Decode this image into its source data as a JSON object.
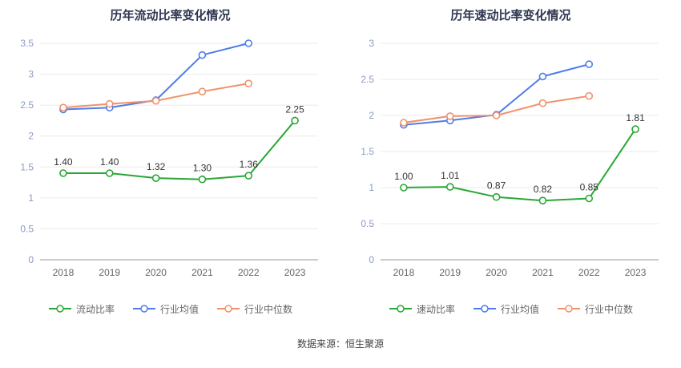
{
  "footer": {
    "source": "数据来源：恒生聚源"
  },
  "colors": {
    "main_series_green": "#2aa637",
    "industry_mean_blue": "#4e7de9",
    "industry_median_orange": "#f1916c",
    "title_color": "#2e3750",
    "y_tick_color": "#8a9cc4",
    "x_tick_color": "#666666",
    "label_color": "#333333",
    "grid_color": "#ebebeb",
    "axis_color": "#999999"
  },
  "chart_data": [
    {
      "type": "line",
      "title": "历年流动比率变化情况",
      "categories": [
        "2018",
        "2019",
        "2020",
        "2021",
        "2022",
        "2023"
      ],
      "ylim": [
        0,
        3.5
      ],
      "yticks": [
        0,
        0.5,
        1,
        1.5,
        2,
        2.5,
        3,
        3.5
      ],
      "grid": true,
      "legend_position": "bottom",
      "series": [
        {
          "name": "流动比率",
          "color": "#2aa637",
          "show_labels": true,
          "values": [
            1.4,
            1.4,
            1.32,
            1.3,
            1.36,
            2.25
          ],
          "labels": [
            "1.40",
            "1.40",
            "1.32",
            "1.30",
            "1.36",
            "2.25"
          ]
        },
        {
          "name": "行业均值",
          "color": "#4e7de9",
          "show_labels": false,
          "values": [
            2.43,
            2.46,
            2.58,
            3.31,
            3.5,
            null
          ]
        },
        {
          "name": "行业中位数",
          "color": "#f1916c",
          "show_labels": false,
          "values": [
            2.46,
            2.52,
            2.57,
            2.72,
            2.85,
            null
          ]
        }
      ]
    },
    {
      "type": "line",
      "title": "历年速动比率变化情况",
      "categories": [
        "2018",
        "2019",
        "2020",
        "2021",
        "2022",
        "2023"
      ],
      "ylim": [
        0,
        3
      ],
      "yticks": [
        0,
        0.5,
        1,
        1.5,
        2,
        2.5,
        3
      ],
      "grid": true,
      "legend_position": "bottom",
      "series": [
        {
          "name": "速动比率",
          "color": "#2aa637",
          "show_labels": true,
          "values": [
            1.0,
            1.01,
            0.87,
            0.82,
            0.85,
            1.81
          ],
          "labels": [
            "1.00",
            "1.01",
            "0.87",
            "0.82",
            "0.85",
            "1.81"
          ]
        },
        {
          "name": "行业均值",
          "color": "#4e7de9",
          "show_labels": false,
          "values": [
            1.87,
            1.93,
            2.01,
            2.54,
            2.71,
            null
          ]
        },
        {
          "name": "行业中位数",
          "color": "#f1916c",
          "show_labels": false,
          "values": [
            1.9,
            1.99,
            2.0,
            2.17,
            2.27,
            null
          ]
        }
      ]
    }
  ]
}
